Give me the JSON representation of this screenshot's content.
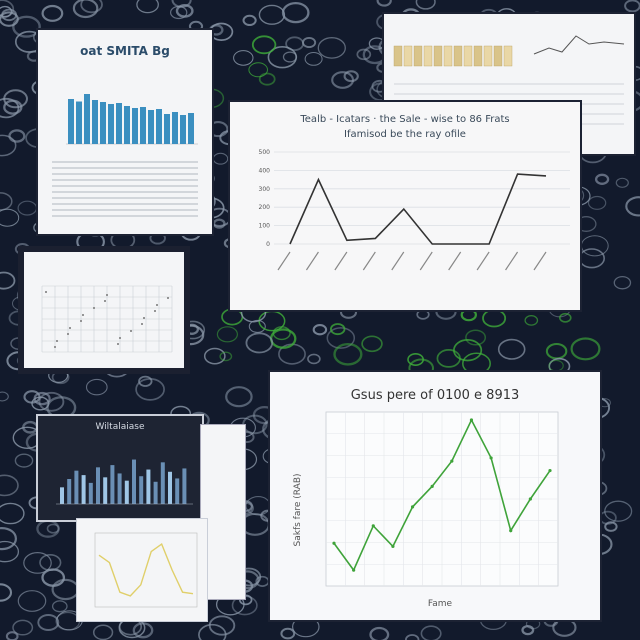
{
  "colors": {
    "background": "#121a2c",
    "mesh_gray": "#8a97a8",
    "mesh_green": "#3fae3a",
    "paper": "#f4f5f7",
    "bar_blue": "#3b8fc0",
    "line_dark": "#333333",
    "line_green": "#3fa33a",
    "line_yellow": "#e0cf6a"
  },
  "cards": [
    {
      "name": "bar-report-card",
      "kind": "bar chart",
      "title": "oat SMITA Bg"
    },
    {
      "name": "top-right-dashboard-card",
      "kind": "mixed chart"
    },
    {
      "name": "line-chart-card",
      "kind": "line chart",
      "title_line1": "Tealb - Icatars · the Sale - wise to 86 Frats",
      "title_line2": "Ifamisod be the ray ofile"
    },
    {
      "name": "grid-table-card",
      "kind": "table"
    },
    {
      "name": "dark-bar-card",
      "kind": "bar chart",
      "title": "Wiltalaiase"
    },
    {
      "name": "yellow-line-card",
      "kind": "line chart"
    },
    {
      "name": "green-line-card",
      "kind": "line chart",
      "title": "Gsus pere of 0100 e 8913",
      "xlabel": "Fame",
      "ylabel": "Sakfs fare (RAB)"
    }
  ],
  "chart_data": [
    {
      "type": "line",
      "name": "line-chart-card",
      "title": "Tealb - Icatars · the Sale - wise to 86 Frats",
      "yticks": [
        "0",
        "100",
        "200",
        "300",
        "400",
        "500"
      ],
      "ylim": [
        0,
        500
      ],
      "y": [
        0,
        350,
        20,
        30,
        190,
        0,
        0,
        0,
        380,
        370
      ]
    },
    {
      "type": "line",
      "name": "green-line-card",
      "title": "Gsus pere of 0100 e 8913",
      "xlabel": "Fame",
      "ylabel": "Sakfs fare (RAB)",
      "ylim": [
        0,
        100
      ],
      "y": [
        22,
        5,
        33,
        20,
        45,
        58,
        74,
        100,
        76,
        30,
        50,
        68
      ]
    },
    {
      "type": "bar",
      "name": "bar-report-card",
      "values": [
        90,
        85,
        100,
        88,
        84,
        80,
        82,
        76,
        72,
        74,
        68,
        70,
        60,
        64,
        58,
        62
      ],
      "ylim": [
        0,
        110
      ]
    },
    {
      "type": "bar",
      "name": "dark-bar-card",
      "values": [
        30,
        45,
        60,
        52,
        38,
        66,
        48,
        70,
        55,
        42,
        80,
        50,
        62,
        40,
        75,
        58,
        46,
        64
      ],
      "ylim": [
        0,
        90
      ]
    },
    {
      "type": "line",
      "name": "yellow-line-card",
      "y": [
        70,
        60,
        20,
        15,
        30,
        75,
        85,
        50,
        20,
        18
      ],
      "ylim": [
        0,
        100
      ]
    }
  ]
}
